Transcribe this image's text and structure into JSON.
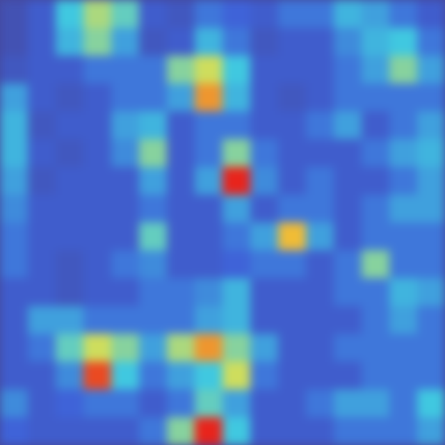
{
  "chart_data": {
    "type": "heatmap",
    "tick_labels": false,
    "color_range": [
      0,
      1
    ],
    "cells": [
      [
        0.1,
        0.2,
        0.5,
        0.65,
        0.55,
        0.2,
        0.15,
        0.3,
        0.25,
        0.2,
        0.3,
        0.3,
        0.45,
        0.4,
        0.3,
        0.2
      ],
      [
        0.1,
        0.2,
        0.45,
        0.6,
        0.4,
        0.15,
        0.2,
        0.45,
        0.3,
        0.15,
        0.2,
        0.2,
        0.35,
        0.45,
        0.5,
        0.3
      ],
      [
        0.15,
        0.2,
        0.2,
        0.3,
        0.3,
        0.3,
        0.6,
        0.7,
        0.5,
        0.2,
        0.2,
        0.2,
        0.3,
        0.4,
        0.6,
        0.4
      ],
      [
        0.4,
        0.2,
        0.15,
        0.2,
        0.3,
        0.3,
        0.4,
        0.85,
        0.45,
        0.2,
        0.15,
        0.2,
        0.3,
        0.3,
        0.3,
        0.3
      ],
      [
        0.45,
        0.15,
        0.2,
        0.2,
        0.4,
        0.45,
        0.2,
        0.3,
        0.3,
        0.2,
        0.2,
        0.3,
        0.4,
        0.2,
        0.3,
        0.4
      ],
      [
        0.45,
        0.2,
        0.15,
        0.2,
        0.35,
        0.6,
        0.2,
        0.3,
        0.6,
        0.3,
        0.2,
        0.2,
        0.2,
        0.3,
        0.4,
        0.45
      ],
      [
        0.4,
        0.15,
        0.2,
        0.2,
        0.2,
        0.4,
        0.2,
        0.4,
        1.0,
        0.35,
        0.2,
        0.3,
        0.2,
        0.2,
        0.3,
        0.4
      ],
      [
        0.35,
        0.2,
        0.2,
        0.2,
        0.2,
        0.3,
        0.2,
        0.2,
        0.4,
        0.2,
        0.3,
        0.3,
        0.2,
        0.3,
        0.4,
        0.4
      ],
      [
        0.3,
        0.2,
        0.2,
        0.2,
        0.2,
        0.55,
        0.2,
        0.2,
        0.3,
        0.4,
        0.8,
        0.4,
        0.2,
        0.3,
        0.3,
        0.3
      ],
      [
        0.3,
        0.2,
        0.15,
        0.2,
        0.3,
        0.35,
        0.2,
        0.2,
        0.25,
        0.3,
        0.3,
        0.2,
        0.3,
        0.6,
        0.3,
        0.3
      ],
      [
        0.2,
        0.2,
        0.15,
        0.2,
        0.2,
        0.3,
        0.3,
        0.35,
        0.45,
        0.2,
        0.2,
        0.2,
        0.3,
        0.3,
        0.45,
        0.4
      ],
      [
        0.2,
        0.4,
        0.4,
        0.3,
        0.3,
        0.3,
        0.3,
        0.4,
        0.45,
        0.2,
        0.2,
        0.2,
        0.2,
        0.3,
        0.4,
        0.3
      ],
      [
        0.2,
        0.3,
        0.55,
        0.7,
        0.6,
        0.4,
        0.65,
        0.85,
        0.6,
        0.4,
        0.2,
        0.2,
        0.3,
        0.3,
        0.3,
        0.3
      ],
      [
        0.2,
        0.2,
        0.35,
        0.95,
        0.5,
        0.3,
        0.4,
        0.5,
        0.7,
        0.3,
        0.2,
        0.2,
        0.2,
        0.3,
        0.3,
        0.3
      ],
      [
        0.35,
        0.2,
        0.25,
        0.3,
        0.3,
        0.2,
        0.3,
        0.55,
        0.4,
        0.2,
        0.2,
        0.3,
        0.4,
        0.4,
        0.3,
        0.5
      ],
      [
        0.25,
        0.2,
        0.2,
        0.2,
        0.2,
        0.3,
        0.6,
        1.0,
        0.5,
        0.2,
        0.2,
        0.2,
        0.3,
        0.3,
        0.3,
        0.4
      ]
    ]
  }
}
